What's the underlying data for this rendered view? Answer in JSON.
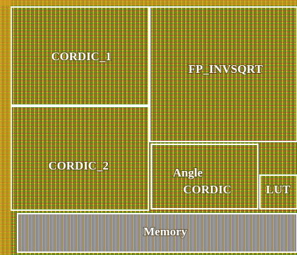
{
  "blocks": [
    {
      "lines": [
        "CORDIC_1"
      ]
    },
    {
      "lines": [
        "FP_INVSQRT"
      ]
    },
    {
      "lines": [
        "CORDIC_2"
      ]
    },
    {
      "lines": [
        "Angle",
        "CORDIC"
      ]
    },
    {
      "lines": [
        "LUT"
      ]
    },
    {
      "lines": [
        "Memory"
      ]
    }
  ]
}
